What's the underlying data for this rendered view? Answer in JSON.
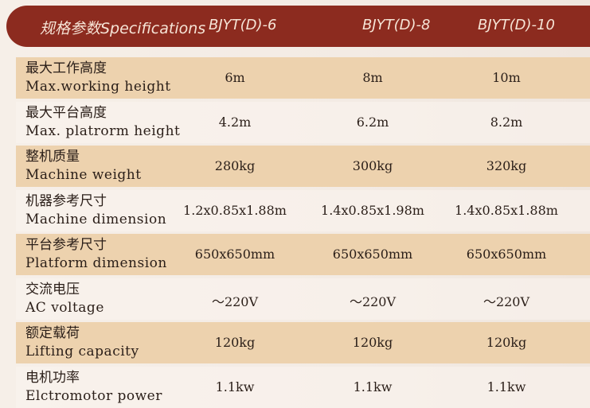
{
  "header": {
    "title": "规格参数Specifications",
    "models": [
      "BJYT(D)-6",
      "BJYT(D)-8",
      "BJYT(D)-10"
    ]
  },
  "colors": {
    "header_bg": "#8c2b1f",
    "row_tan": "#edd2ae"
  },
  "rows": [
    {
      "zh": "最大工作高度",
      "en": "Max.working height",
      "values": [
        "6m",
        "8m",
        "10m"
      ]
    },
    {
      "zh": "最大平台高度",
      "en": "Max. platrorm height",
      "values": [
        "4.2m",
        "6.2m",
        "8.2m"
      ]
    },
    {
      "zh": "整机质量",
      "en": "Machine weight",
      "values": [
        "280kg",
        "300kg",
        "320kg"
      ]
    },
    {
      "zh": "机器参考尺寸",
      "en": "Machine dimension",
      "values": [
        "1.2x0.85x1.88m",
        "1.4x0.85x1.98m",
        "1.4x0.85x1.88m"
      ]
    },
    {
      "zh": "平台参考尺寸",
      "en": "Platform dimension",
      "values": [
        "650x650mm",
        "650x650mm",
        "650x650mm"
      ]
    },
    {
      "zh": "交流电压",
      "en": "AC voltage",
      "values": [
        "～220V",
        "～220V",
        "～220V"
      ]
    },
    {
      "zh": "额定载荷",
      "en": "Lifting capacity",
      "values": [
        "120kg",
        "120kg",
        "120kg"
      ]
    },
    {
      "zh": "电机功率",
      "en": "Elctromotor power",
      "values": [
        "1.1kw",
        "1.1kw",
        "1.1kw"
      ]
    }
  ]
}
